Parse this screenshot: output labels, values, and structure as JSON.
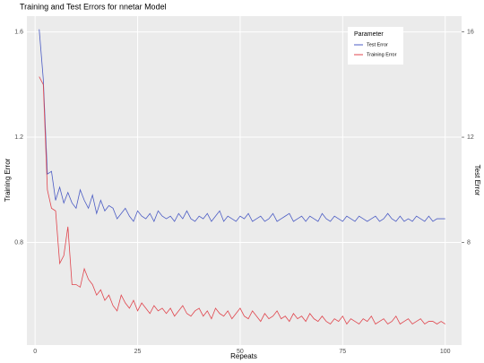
{
  "chart_data": {
    "type": "line",
    "title": "Training and Test Errors for nnetar Model",
    "x_label": "Repeats",
    "y_label": "Training Error",
    "y2_label": "Test Error",
    "legend_title": "Parameter",
    "legend_position": "top-right",
    "grid": true,
    "x": [
      1,
      2,
      3,
      4,
      5,
      6,
      7,
      8,
      9,
      10,
      11,
      12,
      13,
      14,
      15,
      16,
      17,
      18,
      19,
      20,
      21,
      22,
      23,
      24,
      25,
      26,
      27,
      28,
      29,
      30,
      31,
      32,
      33,
      34,
      35,
      36,
      37,
      38,
      39,
      40,
      41,
      42,
      43,
      44,
      45,
      46,
      47,
      48,
      49,
      50,
      51,
      52,
      53,
      54,
      55,
      56,
      57,
      58,
      59,
      60,
      61,
      62,
      63,
      64,
      65,
      66,
      67,
      68,
      69,
      70,
      71,
      72,
      73,
      74,
      75,
      76,
      77,
      78,
      79,
      80,
      81,
      82,
      83,
      84,
      85,
      86,
      87,
      88,
      89,
      90,
      91,
      92,
      93,
      94,
      95,
      96,
      97,
      98,
      99,
      100
    ],
    "xlim": [
      -2,
      104
    ],
    "xticks": [
      0,
      25,
      50,
      75,
      100
    ],
    "ylim": [
      0.41,
      1.66
    ],
    "yticks": [
      0.8,
      1.2,
      1.6
    ],
    "y2lim": [
      4.1,
      16.6
    ],
    "y2ticks": [
      8,
      12,
      16
    ],
    "series": [
      {
        "name": "Test Error",
        "color": "#4b5cc4",
        "axis": "y2",
        "values": [
          16.1,
          14.2,
          10.6,
          10.7,
          9.6,
          10.1,
          9.5,
          9.9,
          9.5,
          9.3,
          10.0,
          9.6,
          9.3,
          9.8,
          9.1,
          9.6,
          9.2,
          9.4,
          9.3,
          8.9,
          9.1,
          9.3,
          9.0,
          8.8,
          9.2,
          9.0,
          8.9,
          9.1,
          8.8,
          9.2,
          9.0,
          8.9,
          9.0,
          8.8,
          9.1,
          8.9,
          9.2,
          8.9,
          8.8,
          9.0,
          8.9,
          9.1,
          8.8,
          9.0,
          9.2,
          8.8,
          9.0,
          8.9,
          8.8,
          9.0,
          8.9,
          9.1,
          8.8,
          8.9,
          9.0,
          8.8,
          8.9,
          9.1,
          8.8,
          8.9,
          9.0,
          9.1,
          8.8,
          8.9,
          9.0,
          8.8,
          9.0,
          8.9,
          8.8,
          9.1,
          8.9,
          8.8,
          9.0,
          8.9,
          8.8,
          9.0,
          8.9,
          8.8,
          9.0,
          8.9,
          8.8,
          8.9,
          9.0,
          8.8,
          8.9,
          9.1,
          8.9,
          8.8,
          9.0,
          8.8,
          8.9,
          8.8,
          9.0,
          8.9,
          8.8,
          9.0,
          8.8,
          8.9,
          8.9,
          8.9
        ]
      },
      {
        "name": "Training Error",
        "color": "#e0454d",
        "values": [
          1.43,
          1.4,
          1.0,
          0.93,
          0.92,
          0.72,
          0.75,
          0.86,
          0.64,
          0.64,
          0.63,
          0.7,
          0.66,
          0.64,
          0.6,
          0.62,
          0.58,
          0.6,
          0.56,
          0.54,
          0.6,
          0.57,
          0.55,
          0.58,
          0.54,
          0.57,
          0.55,
          0.53,
          0.56,
          0.54,
          0.55,
          0.53,
          0.55,
          0.52,
          0.54,
          0.56,
          0.53,
          0.52,
          0.54,
          0.55,
          0.52,
          0.54,
          0.51,
          0.55,
          0.53,
          0.52,
          0.54,
          0.51,
          0.53,
          0.55,
          0.52,
          0.51,
          0.54,
          0.52,
          0.5,
          0.53,
          0.51,
          0.52,
          0.54,
          0.51,
          0.52,
          0.5,
          0.53,
          0.51,
          0.52,
          0.5,
          0.53,
          0.51,
          0.5,
          0.52,
          0.5,
          0.49,
          0.51,
          0.5,
          0.52,
          0.49,
          0.51,
          0.5,
          0.49,
          0.51,
          0.5,
          0.52,
          0.49,
          0.5,
          0.51,
          0.49,
          0.5,
          0.52,
          0.49,
          0.5,
          0.51,
          0.49,
          0.5,
          0.51,
          0.49,
          0.5,
          0.5,
          0.49,
          0.5,
          0.49
        ]
      }
    ]
  }
}
